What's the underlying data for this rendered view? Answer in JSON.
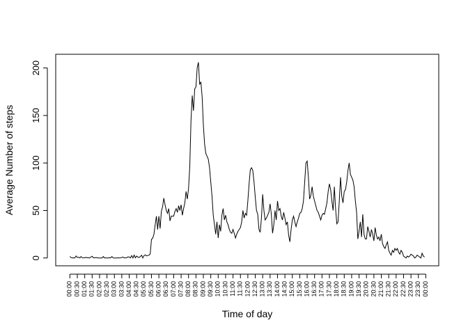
{
  "chart_data": {
    "type": "line",
    "xlabel": "Time of day",
    "ylabel": "Average Number of steps",
    "color": "#000000",
    "x": [
      0,
      5,
      10,
      15,
      20,
      25,
      30,
      35,
      40,
      45,
      50,
      55,
      60,
      65,
      70,
      75,
      80,
      85,
      90,
      95,
      100,
      105,
      110,
      115,
      120,
      125,
      130,
      135,
      140,
      145,
      150,
      155,
      160,
      165,
      170,
      175,
      180,
      185,
      190,
      195,
      200,
      205,
      210,
      215,
      220,
      225,
      230,
      235,
      240,
      245,
      250,
      255,
      260,
      265,
      270,
      275,
      280,
      285,
      290,
      295,
      300,
      305,
      310,
      315,
      320,
      325,
      330,
      335,
      340,
      345,
      350,
      355,
      360,
      365,
      370,
      375,
      380,
      385,
      390,
      395,
      400,
      405,
      410,
      415,
      420,
      425,
      430,
      435,
      440,
      445,
      450,
      455,
      460,
      465,
      470,
      475,
      480,
      485,
      490,
      495,
      500,
      505,
      510,
      515,
      520,
      525,
      530,
      535,
      540,
      545,
      550,
      555,
      560,
      565,
      570,
      575,
      580,
      585,
      590,
      595,
      600,
      605,
      610,
      615,
      620,
      625,
      630,
      635,
      640,
      645,
      650,
      655,
      660,
      665,
      670,
      675,
      680,
      685,
      690,
      695,
      700,
      705,
      710,
      715,
      720,
      725,
      730,
      735,
      740,
      745,
      750,
      755,
      760,
      765,
      770,
      775,
      780,
      785,
      790,
      795,
      800,
      805,
      810,
      815,
      820,
      825,
      830,
      835,
      840,
      845,
      850,
      855,
      860,
      865,
      870,
      875,
      880,
      885,
      890,
      895,
      900,
      905,
      910,
      915,
      920,
      925,
      930,
      935,
      940,
      945,
      950,
      955,
      960,
      965,
      970,
      975,
      980,
      985,
      990,
      995,
      1000,
      1005,
      1010,
      1015,
      1020,
      1025,
      1030,
      1035,
      1040,
      1045,
      1050,
      1055,
      1060,
      1065,
      1070,
      1075,
      1080,
      1085,
      1090,
      1095,
      1100,
      1105,
      1110,
      1115,
      1120,
      1125,
      1130,
      1135,
      1140,
      1145,
      1150,
      1155,
      1160,
      1165,
      1170,
      1175,
      1180,
      1185,
      1190,
      1195,
      1200,
      1205,
      1210,
      1215,
      1220,
      1225,
      1230,
      1235,
      1240,
      1245,
      1250,
      1255,
      1260,
      1265,
      1270,
      1275,
      1280,
      1285,
      1290,
      1295,
      1300,
      1305,
      1310,
      1315,
      1320,
      1325,
      1330,
      1335,
      1340,
      1345,
      1350,
      1355,
      1360,
      1365,
      1370,
      1375,
      1380,
      1385,
      1390,
      1395,
      1400,
      1405,
      1410,
      1415,
      1420,
      1425,
      1430,
      1435
    ],
    "values": [
      1.7,
      0.3,
      0.1,
      0.2,
      0.1,
      2.1,
      0.5,
      0.9,
      0,
      1.5,
      0.3,
      0.1,
      0.3,
      0.7,
      0.2,
      0.3,
      0,
      1.1,
      1.8,
      0.2,
      0.2,
      0.4,
      0.3,
      0,
      0,
      0,
      0,
      1.5,
      0,
      0.2,
      0,
      0,
      0.3,
      0.2,
      1.5,
      0.1,
      0,
      0,
      0,
      0.2,
      0,
      0.2,
      0.6,
      1.0,
      0,
      0.2,
      0.3,
      1.2,
      1.0,
      0.1,
      2.5,
      0,
      3.0,
      0.2,
      2.0,
      0.9,
      0.6,
      1.5,
      2.9,
      0,
      2.5,
      3.3,
      2.2,
      2.6,
      2.9,
      4.2,
      19.5,
      20.9,
      25.0,
      35.0,
      44.0,
      30.0,
      44,
      31,
      49,
      54,
      63,
      56,
      50,
      47,
      52,
      39,
      44,
      44,
      44,
      49,
      52,
      48,
      55,
      50,
      56,
      45,
      52,
      58,
      70,
      62,
      73,
      96,
      145,
      171,
      155,
      178,
      180,
      200,
      206,
      183,
      185,
      170,
      140,
      120,
      110,
      107,
      104,
      95,
      80,
      65,
      45,
      35,
      25,
      38,
      21,
      35,
      28,
      45,
      52,
      40,
      45,
      38,
      35,
      30,
      27,
      26,
      30,
      26,
      21,
      25,
      28,
      30,
      32,
      38,
      50,
      42,
      47,
      45,
      60,
      78,
      93,
      95,
      92,
      80,
      64,
      50,
      46,
      30,
      27,
      42,
      67,
      50,
      40,
      42,
      45,
      48,
      57,
      46,
      26,
      35,
      50,
      40,
      60,
      50,
      52,
      44,
      40,
      48,
      42,
      35,
      38,
      24,
      17,
      30,
      40,
      44,
      38,
      33,
      38,
      42,
      47,
      48,
      52,
      60,
      80,
      100,
      102,
      85,
      62,
      66,
      75,
      65,
      60,
      55,
      50,
      48,
      44,
      40,
      45,
      47,
      46,
      52,
      58,
      70,
      78,
      72,
      60,
      50,
      75,
      52,
      36,
      38,
      60,
      85,
      65,
      58,
      70,
      72,
      80,
      92,
      100,
      88,
      85,
      82,
      75,
      60,
      48,
      20,
      28,
      38,
      22,
      46,
      25,
      20,
      20,
      33,
      28,
      22,
      30,
      25,
      18,
      32,
      24,
      20,
      22,
      18,
      25,
      15,
      12,
      10,
      14,
      17,
      8,
      5,
      3,
      8,
      6,
      10,
      8,
      10,
      6,
      4,
      8,
      6,
      2,
      1,
      0,
      2,
      1,
      2,
      4,
      3,
      2,
      0,
      1,
      3,
      2,
      1,
      0,
      5,
      2,
      1
    ],
    "xlim": [
      -57.4,
      1492.4
    ],
    "ylim": [
      -8.25,
      214.42
    ],
    "yticks": [
      0,
      50,
      100,
      150,
      200
    ],
    "xticks": [
      {
        "value": 0,
        "label": "00:00"
      },
      {
        "value": 30,
        "label": "00:30"
      },
      {
        "value": 60,
        "label": "01:00"
      },
      {
        "value": 90,
        "label": "01:30"
      },
      {
        "value": 120,
        "label": "02:00"
      },
      {
        "value": 150,
        "label": "02:30"
      },
      {
        "value": 180,
        "label": "03:00"
      },
      {
        "value": 210,
        "label": "03:30"
      },
      {
        "value": 240,
        "label": "04:00"
      },
      {
        "value": 270,
        "label": "04:30"
      },
      {
        "value": 300,
        "label": "05:00"
      },
      {
        "value": 330,
        "label": "05:30"
      },
      {
        "value": 360,
        "label": "06:00"
      },
      {
        "value": 390,
        "label": "06:30"
      },
      {
        "value": 420,
        "label": "07:00"
      },
      {
        "value": 450,
        "label": "07:30"
      },
      {
        "value": 480,
        "label": "08:00"
      },
      {
        "value": 510,
        "label": "08:30"
      },
      {
        "value": 540,
        "label": "09:00"
      },
      {
        "value": 570,
        "label": "09:30"
      },
      {
        "value": 600,
        "label": "10:00"
      },
      {
        "value": 630,
        "label": "10:30"
      },
      {
        "value": 660,
        "label": "11:00"
      },
      {
        "value": 690,
        "label": "11:30"
      },
      {
        "value": 720,
        "label": "12:00"
      },
      {
        "value": 750,
        "label": "12:30"
      },
      {
        "value": 780,
        "label": "13:00"
      },
      {
        "value": 810,
        "label": "13:30"
      },
      {
        "value": 840,
        "label": "14:00"
      },
      {
        "value": 870,
        "label": "14:30"
      },
      {
        "value": 900,
        "label": "15:00"
      },
      {
        "value": 930,
        "label": "15:30"
      },
      {
        "value": 960,
        "label": "16:00"
      },
      {
        "value": 990,
        "label": "16:30"
      },
      {
        "value": 1020,
        "label": "17:00"
      },
      {
        "value": 1050,
        "label": "17:30"
      },
      {
        "value": 1080,
        "label": "18:00"
      },
      {
        "value": 1110,
        "label": "18:30"
      },
      {
        "value": 1140,
        "label": "19:00"
      },
      {
        "value": 1170,
        "label": "19:30"
      },
      {
        "value": 1200,
        "label": "20:00"
      },
      {
        "value": 1230,
        "label": "20:30"
      },
      {
        "value": 1260,
        "label": "21:00"
      },
      {
        "value": 1290,
        "label": "21:30"
      },
      {
        "value": 1320,
        "label": "22:00"
      },
      {
        "value": 1350,
        "label": "22:30"
      },
      {
        "value": 1380,
        "label": "23:00"
      },
      {
        "value": 1410,
        "label": "23:30"
      },
      {
        "value": 1440,
        "label": "00:00"
      }
    ]
  }
}
